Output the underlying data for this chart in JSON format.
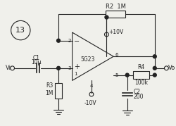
{
  "bg_color": "#f0f0eb",
  "components": {
    "R2_label": "R2  1M",
    "R3_label": "R3",
    "R3_val": "1M",
    "R4_label": "R4",
    "R4_val": "100k",
    "C1_label": "C1",
    "C1_val": "10μ",
    "C2_label": "C2",
    "C2_val": "200",
    "opamp_label": "5G23"
  },
  "voltages": {
    "plus": "+10V",
    "minus": "-10V"
  },
  "vi_label": "Vi",
  "vo_label": "Vo",
  "circle_label": "13"
}
